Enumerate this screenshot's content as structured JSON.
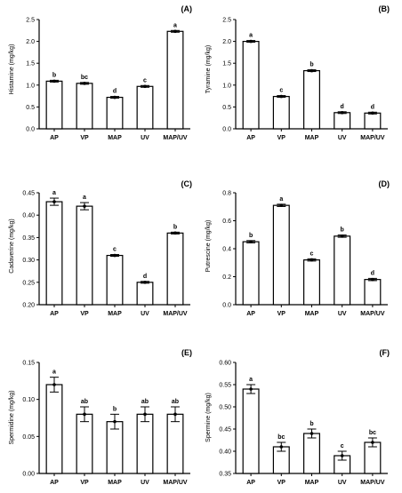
{
  "chart_data": [
    {
      "panel": "(A)",
      "type": "bar",
      "ylabel": "Histamine (mg/kg)",
      "categories": [
        "AP",
        "VP",
        "MAP",
        "UV",
        "MAP/UV"
      ],
      "values": [
        1.09,
        1.04,
        0.72,
        0.97,
        2.23
      ],
      "errors": [
        0.02,
        0.02,
        0.02,
        0.02,
        0.02
      ],
      "letters": [
        "b",
        "bc",
        "d",
        "c",
        "a"
      ],
      "ylim": [
        0,
        2.5
      ],
      "yticks": [
        "0.0",
        "0.5",
        "1.0",
        "1.5",
        "2.0",
        "2.5"
      ]
    },
    {
      "panel": "(B)",
      "type": "bar",
      "ylabel": "Tyramine (mg/kg)",
      "categories": [
        "AP",
        "VP",
        "MAP",
        "UV",
        "MAP/UV"
      ],
      "values": [
        2.0,
        0.74,
        1.33,
        0.37,
        0.36
      ],
      "errors": [
        0.02,
        0.02,
        0.02,
        0.02,
        0.02
      ],
      "letters": [
        "a",
        "c",
        "b",
        "d",
        "d"
      ],
      "ylim": [
        0,
        2.5
      ],
      "yticks": [
        "0.0",
        "0.5",
        "1.0",
        "1.5",
        "2.0",
        "2.5"
      ]
    },
    {
      "panel": "(C)",
      "type": "bar",
      "ylabel": "Cadaverine (mg/kg)",
      "categories": [
        "AP",
        "VP",
        "MAP",
        "UV",
        "MAP/UV"
      ],
      "values": [
        0.43,
        0.42,
        0.31,
        0.25,
        0.36
      ],
      "errors": [
        0.008,
        0.008,
        0.002,
        0.002,
        0.002
      ],
      "letters": [
        "a",
        "a",
        "c",
        "d",
        "b"
      ],
      "ylim": [
        0.2,
        0.45
      ],
      "yticks": [
        "0.20",
        "0.25",
        "0.30",
        "0.35",
        "0.40",
        "0.45"
      ]
    },
    {
      "panel": "(D)",
      "type": "bar",
      "ylabel": "Putrescine (mg/kg)",
      "categories": [
        "AP",
        "VP",
        "MAP",
        "UV",
        "MAP/UV"
      ],
      "values": [
        0.45,
        0.71,
        0.32,
        0.49,
        0.18
      ],
      "errors": [
        0.008,
        0.008,
        0.008,
        0.008,
        0.008
      ],
      "letters": [
        "b",
        "a",
        "c",
        "b",
        "d"
      ],
      "ylim": [
        0,
        0.8
      ],
      "yticks": [
        "0.0",
        "0.2",
        "0.4",
        "0.6",
        "0.8"
      ]
    },
    {
      "panel": "(E)",
      "type": "bar",
      "ylabel": "Spermidine (mg/kg)",
      "categories": [
        "AP",
        "VP",
        "MAP",
        "UV",
        "MAP/UV"
      ],
      "values": [
        0.12,
        0.08,
        0.07,
        0.08,
        0.08
      ],
      "errors": [
        0.01,
        0.01,
        0.01,
        0.01,
        0.01
      ],
      "letters": [
        "a",
        "ab",
        "b",
        "ab",
        "ab"
      ],
      "ylim": [
        0,
        0.15
      ],
      "yticks": [
        "0.00",
        "0.05",
        "0.10",
        "0.15"
      ]
    },
    {
      "panel": "(F)",
      "type": "bar",
      "ylabel": "Spermine (mg/kg)",
      "categories": [
        "AP",
        "VP",
        "MAP",
        "UV",
        "MAP/UV"
      ],
      "values": [
        0.54,
        0.41,
        0.44,
        0.39,
        0.42
      ],
      "errors": [
        0.01,
        0.01,
        0.01,
        0.01,
        0.01
      ],
      "letters": [
        "a",
        "bc",
        "b",
        "c",
        "bc"
      ],
      "ylim": [
        0.35,
        0.6
      ],
      "yticks": [
        "0.35",
        "0.40",
        "0.45",
        "0.50",
        "0.55",
        "0.60"
      ]
    }
  ]
}
